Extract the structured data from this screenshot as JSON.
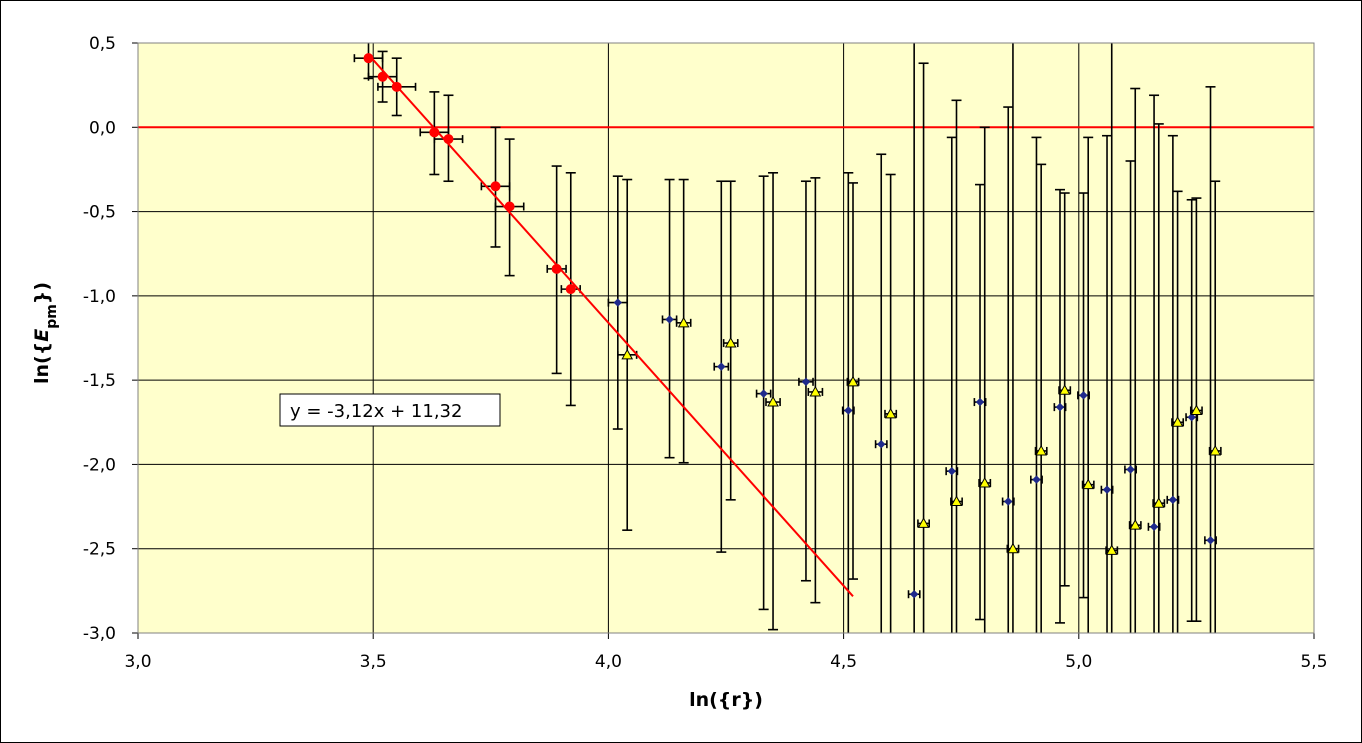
{
  "chart_data": {
    "type": "scatter",
    "title": "",
    "xlabel": "ln({r})",
    "ylabel_parts": {
      "pre": "ln({",
      "italic": "E",
      "sub": "pm",
      "post": "})"
    },
    "xlim": [
      3.0,
      5.5
    ],
    "ylim": [
      -3.0,
      0.5
    ],
    "x_ticks": [
      "3,0",
      "3,5",
      "4,0",
      "4,5",
      "5,0",
      "5,5"
    ],
    "y_ticks": [
      "0,5",
      "0,0",
      "-0,5",
      "-1,0",
      "-1,5",
      "-2,0",
      "-2,5",
      "-3,0"
    ],
    "grid": true,
    "plot_background": "#FFFFCC",
    "reference_line": {
      "y": 0.0,
      "color": "#FF0000"
    },
    "trendline": {
      "label": "y = -3,12x + 11,32",
      "slope": -3.12,
      "intercept": 11.32,
      "x_start": 3.49,
      "x_end": 4.52,
      "color": "#FF0000"
    },
    "series": [
      {
        "marker": "circle",
        "color": "#FF0000",
        "points": [
          {
            "x": 3.49,
            "y": 0.41,
            "xerr": 0.03,
            "ylo": 0.29,
            "yhi": 0.5
          },
          {
            "x": 3.52,
            "y": 0.3,
            "xerr": 0.03,
            "ylo": 0.15,
            "yhi": 0.45
          },
          {
            "x": 3.55,
            "y": 0.24,
            "xerr": 0.04,
            "ylo": 0.07,
            "yhi": 0.41
          },
          {
            "x": 3.63,
            "y": -0.03,
            "xerr": 0.03,
            "ylo": -0.28,
            "yhi": 0.21
          },
          {
            "x": 3.66,
            "y": -0.07,
            "xerr": 0.03,
            "ylo": -0.32,
            "yhi": 0.19
          },
          {
            "x": 3.76,
            "y": -0.35,
            "xerr": 0.03,
            "ylo": -0.71,
            "yhi": 0.0
          },
          {
            "x": 3.79,
            "y": -0.47,
            "xerr": 0.03,
            "ylo": -0.88,
            "yhi": -0.07
          },
          {
            "x": 3.89,
            "y": -0.84,
            "xerr": 0.02,
            "ylo": -1.46,
            "yhi": -0.23
          },
          {
            "x": 3.92,
            "y": -0.96,
            "xerr": 0.02,
            "ylo": -1.65,
            "yhi": -0.27
          }
        ]
      },
      {
        "marker": "diamond",
        "color": "#1F2A8C",
        "points": [
          {
            "x": 4.02,
            "y": -1.04,
            "xerr": 0.02,
            "ylo": -1.79,
            "yhi": -0.29
          },
          {
            "x": 4.13,
            "y": -1.14,
            "xerr": 0.015,
            "ylo": -1.96,
            "yhi": -0.31
          },
          {
            "x": 4.24,
            "y": -1.42,
            "xerr": 0.015,
            "ylo": -2.52,
            "yhi": -0.32
          },
          {
            "x": 4.33,
            "y": -1.58,
            "xerr": 0.015,
            "ylo": -2.86,
            "yhi": -0.29
          },
          {
            "x": 4.42,
            "y": -1.51,
            "xerr": 0.015,
            "ylo": -2.69,
            "yhi": -0.32
          },
          {
            "x": 4.51,
            "y": -1.68,
            "xerr": 0.012,
            "ylo": -3.0,
            "yhi": -0.27
          },
          {
            "x": 4.58,
            "y": -1.88,
            "xerr": 0.012,
            "ylo": -3.0,
            "yhi": -0.16
          },
          {
            "x": 4.65,
            "y": -2.77,
            "xerr": 0.012,
            "ylo": -3.0,
            "yhi": 0.5
          },
          {
            "x": 4.73,
            "y": -2.04,
            "xerr": 0.012,
            "ylo": -3.0,
            "yhi": -0.06
          },
          {
            "x": 4.79,
            "y": -1.63,
            "xerr": 0.012,
            "ylo": -2.92,
            "yhi": -0.34
          },
          {
            "x": 4.85,
            "y": -2.22,
            "xerr": 0.012,
            "ylo": -3.0,
            "yhi": 0.12
          },
          {
            "x": 4.91,
            "y": -2.09,
            "xerr": 0.012,
            "ylo": -3.0,
            "yhi": -0.06
          },
          {
            "x": 4.96,
            "y": -1.66,
            "xerr": 0.012,
            "ylo": -2.94,
            "yhi": -0.37
          },
          {
            "x": 5.01,
            "y": -1.59,
            "xerr": 0.012,
            "ylo": -2.79,
            "yhi": -0.39
          },
          {
            "x": 5.06,
            "y": -2.15,
            "xerr": 0.012,
            "ylo": -3.0,
            "yhi": -0.05
          },
          {
            "x": 5.11,
            "y": -2.03,
            "xerr": 0.012,
            "ylo": -3.0,
            "yhi": -0.2
          },
          {
            "x": 5.16,
            "y": -2.37,
            "xerr": 0.012,
            "ylo": -3.0,
            "yhi": 0.19
          },
          {
            "x": 5.2,
            "y": -2.21,
            "xerr": 0.012,
            "ylo": -3.0,
            "yhi": -0.05
          },
          {
            "x": 5.24,
            "y": -1.72,
            "xerr": 0.012,
            "ylo": -2.93,
            "yhi": -0.43
          },
          {
            "x": 5.28,
            "y": -2.45,
            "xerr": 0.012,
            "ylo": -3.0,
            "yhi": 0.24
          }
        ]
      },
      {
        "marker": "triangle",
        "color": "#FFFF00",
        "points": [
          {
            "x": 4.04,
            "y": -1.35,
            "xerr": 0.02,
            "ylo": -2.39,
            "yhi": -0.31
          },
          {
            "x": 4.16,
            "y": -1.16,
            "xerr": 0.015,
            "ylo": -1.99,
            "yhi": -0.31
          },
          {
            "x": 4.26,
            "y": -1.28,
            "xerr": 0.015,
            "ylo": -2.21,
            "yhi": -0.32
          },
          {
            "x": 4.35,
            "y": -1.63,
            "xerr": 0.015,
            "ylo": -2.98,
            "yhi": -0.27
          },
          {
            "x": 4.44,
            "y": -1.57,
            "xerr": 0.015,
            "ylo": -2.82,
            "yhi": -0.3
          },
          {
            "x": 4.52,
            "y": -1.51,
            "xerr": 0.012,
            "ylo": -2.68,
            "yhi": -0.33
          },
          {
            "x": 4.6,
            "y": -1.7,
            "xerr": 0.012,
            "ylo": -3.0,
            "yhi": -0.28
          },
          {
            "x": 4.67,
            "y": -2.35,
            "xerr": 0.012,
            "ylo": -3.0,
            "yhi": 0.38
          },
          {
            "x": 4.74,
            "y": -2.22,
            "xerr": 0.012,
            "ylo": -3.0,
            "yhi": 0.16
          },
          {
            "x": 4.8,
            "y": -2.11,
            "xerr": 0.012,
            "ylo": -3.0,
            "yhi": 0.0
          },
          {
            "x": 4.86,
            "y": -2.5,
            "xerr": 0.012,
            "ylo": -3.0,
            "yhi": 0.5
          },
          {
            "x": 4.92,
            "y": -1.92,
            "xerr": 0.012,
            "ylo": -3.0,
            "yhi": -0.22
          },
          {
            "x": 4.97,
            "y": -1.56,
            "xerr": 0.012,
            "ylo": -2.72,
            "yhi": -0.39
          },
          {
            "x": 5.02,
            "y": -2.12,
            "xerr": 0.012,
            "ylo": -3.0,
            "yhi": -0.06
          },
          {
            "x": 5.07,
            "y": -2.51,
            "xerr": 0.012,
            "ylo": -3.0,
            "yhi": 0.5
          },
          {
            "x": 5.12,
            "y": -2.36,
            "xerr": 0.012,
            "ylo": -3.0,
            "yhi": 0.23
          },
          {
            "x": 5.17,
            "y": -2.23,
            "xerr": 0.012,
            "ylo": -3.0,
            "yhi": 0.02
          },
          {
            "x": 5.21,
            "y": -1.75,
            "xerr": 0.012,
            "ylo": -3.0,
            "yhi": -0.38
          },
          {
            "x": 5.25,
            "y": -1.68,
            "xerr": 0.012,
            "ylo": -2.93,
            "yhi": -0.42
          },
          {
            "x": 5.29,
            "y": -1.92,
            "xerr": 0.012,
            "ylo": -3.0,
            "yhi": -0.32
          }
        ]
      }
    ]
  }
}
